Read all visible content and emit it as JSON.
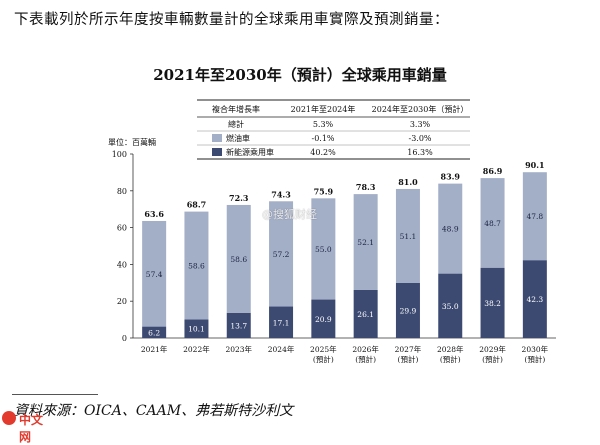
{
  "intro_text": "下表載列於所示年度按車輛數量計的全球乘用車實際及預測銷量：",
  "chart_title": "2021年至2030年（預計）全球乘用車銷量",
  "table": {
    "headers": [
      "複合年增長率",
      "2021年至2024年",
      "2024年至2030年（預計）"
    ],
    "rows": [
      {
        "label": "總計",
        "values": [
          "5.3%",
          "3.3%"
        ],
        "swatch": ""
      },
      {
        "label": "燃油車",
        "values": [
          "-0.1%",
          "-3.0%"
        ],
        "swatch": "#a3aec7"
      },
      {
        "label": "新能源乘用車",
        "values": [
          "40.2%",
          "16.3%"
        ],
        "swatch": "#3c4a72"
      }
    ]
  },
  "watermark_center": "@搜狐财经",
  "source_text": "資料來源：OICA、CAAM、弗若斯特沙利文",
  "watermark_logo_text": "中文网",
  "chart_data": {
    "type": "bar",
    "stacked": true,
    "ylabel": "單位：百萬輛",
    "ylim": [
      0,
      100
    ],
    "yticks": [
      0,
      20,
      40,
      60,
      80,
      100
    ],
    "grid": false,
    "categories": [
      "2021年",
      "2022年",
      "2023年",
      "2024年",
      "2025年\n(預計)",
      "2026年\n(預計)",
      "2027年\n(預計)",
      "2028年\n(預計)",
      "2029年\n(預計)",
      "2030年\n(預計)"
    ],
    "series": [
      {
        "name": "新能源乘用車",
        "color": "#3c4a72",
        "values": [
          6.2,
          10.1,
          13.7,
          17.1,
          20.9,
          26.1,
          29.9,
          35.0,
          38.2,
          42.3
        ]
      },
      {
        "name": "燃油車",
        "color": "#a3aec7",
        "values": [
          57.4,
          58.6,
          58.6,
          57.2,
          55.0,
          52.1,
          51.1,
          48.9,
          48.7,
          47.8
        ]
      }
    ],
    "totals": [
      63.6,
      68.7,
      72.3,
      74.3,
      75.9,
      78.3,
      81.0,
      83.9,
      86.9,
      90.1
    ]
  }
}
